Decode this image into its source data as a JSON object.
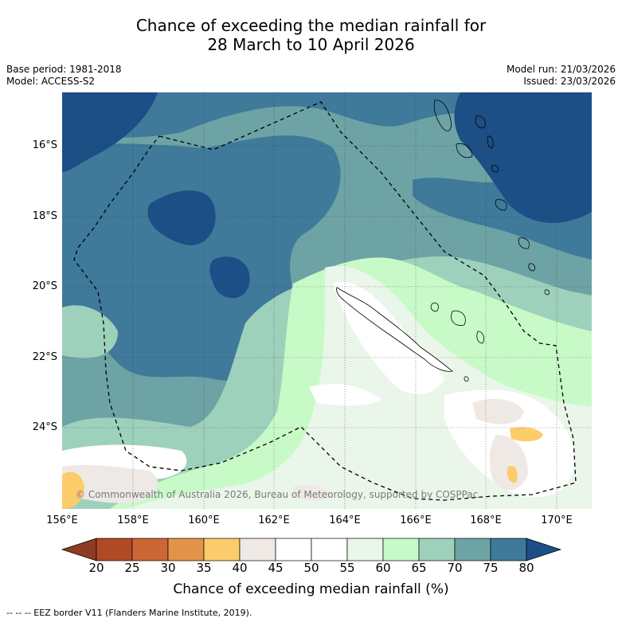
{
  "title": {
    "line1": "Chance of exceeding the median rainfall for",
    "line2": "28 March to 10 April 2026"
  },
  "meta": {
    "base_period": "Base period: 1981-2018",
    "model": "Model: ACCESS-S2",
    "model_run": "Model run: 21/03/2026",
    "issued": "Issued: 23/03/2026"
  },
  "map": {
    "copyright": "© Commonwealth of Australia 2026, Bureau of Meteorology, supported by COSPPac",
    "lat_labels": [
      "16°S",
      "18°S",
      "20°S",
      "22°S",
      "24°S"
    ],
    "lon_labels": [
      "156°E",
      "158°E",
      "160°E",
      "162°E",
      "164°E",
      "166°E",
      "168°E",
      "170°E"
    ],
    "extent": {
      "lon_min": 156,
      "lon_max": 171,
      "lat_north": 14.5,
      "lat_south": 26.3
    }
  },
  "colorbar": {
    "label": "Chance of exceeding median rainfall (%)",
    "ticks": [
      "20",
      "25",
      "30",
      "35",
      "40",
      "45",
      "50",
      "55",
      "60",
      "65",
      "70",
      "75",
      "80"
    ],
    "colors": {
      "lt20": "#8e3c22",
      "b20_25": "#b04a24",
      "b25_30": "#cc6634",
      "b30_35": "#e39348",
      "b35_40": "#fdcc6a",
      "b40_45": "#efe9e6",
      "b45_50": "#ffffff",
      "b50_55": "#ffffff",
      "b55_60": "#eaf6ea",
      "b60_65": "#c8fac8",
      "b65_70": "#9ed1bb",
      "b70_75": "#6da3a5",
      "b75_80": "#3f7a9b",
      "gt80": "#1c4f86"
    }
  },
  "footnote": "--  --  -- EEZ border V11 (Flanders Marine Institute, 2019)."
}
